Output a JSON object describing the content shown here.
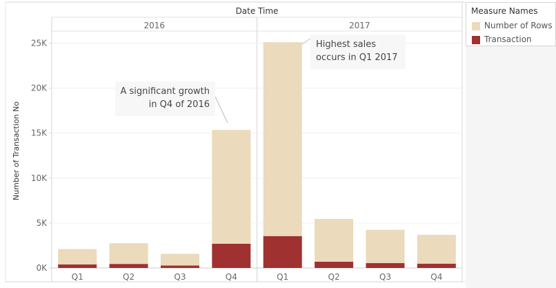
{
  "chart_data": {
    "type": "bar",
    "stacked": true,
    "ylabel": "Number of Transaction No",
    "column_header": "Date Time",
    "years": [
      "2016",
      "2017"
    ],
    "categories": [
      "Q1",
      "Q2",
      "Q3",
      "Q4",
      "Q1",
      "Q2",
      "Q3",
      "Q4"
    ],
    "category_year": [
      "2016",
      "2016",
      "2016",
      "2016",
      "2017",
      "2017",
      "2017",
      "2017"
    ],
    "series": [
      {
        "name": "Transaction",
        "color": "#a03131",
        "values": [
          400,
          450,
          270,
          2700,
          3550,
          700,
          550,
          480
        ]
      },
      {
        "name": "Number of Rows",
        "color": "#ebdabb",
        "values": [
          1700,
          2300,
          1300,
          12650,
          21550,
          4750,
          3700,
          3200
        ]
      }
    ],
    "totals": [
      2100,
      2750,
      1570,
      15350,
      25100,
      5450,
      4250,
      3680
    ],
    "yticks": [
      0,
      5000,
      10000,
      15000,
      20000,
      25000
    ],
    "yticklabels": [
      "0K",
      "5K",
      "10K",
      "15K",
      "20K",
      "25K"
    ],
    "ylim": [
      0,
      25000
    ],
    "grid": true,
    "legend": {
      "title": "Measure Names",
      "position": "top-right",
      "entries": [
        {
          "label": "Number of Rows",
          "color": "#ebdabb"
        },
        {
          "label": "Transaction",
          "color": "#a03131"
        }
      ]
    },
    "annotations": [
      {
        "id": "growth",
        "lines": [
          "A significant growth",
          "in Q4 of 2016"
        ],
        "target": "2016 Q4"
      },
      {
        "id": "highest",
        "lines": [
          "Highest sales",
          "occurs in Q1 2017"
        ],
        "target": "2017 Q1"
      }
    ]
  }
}
